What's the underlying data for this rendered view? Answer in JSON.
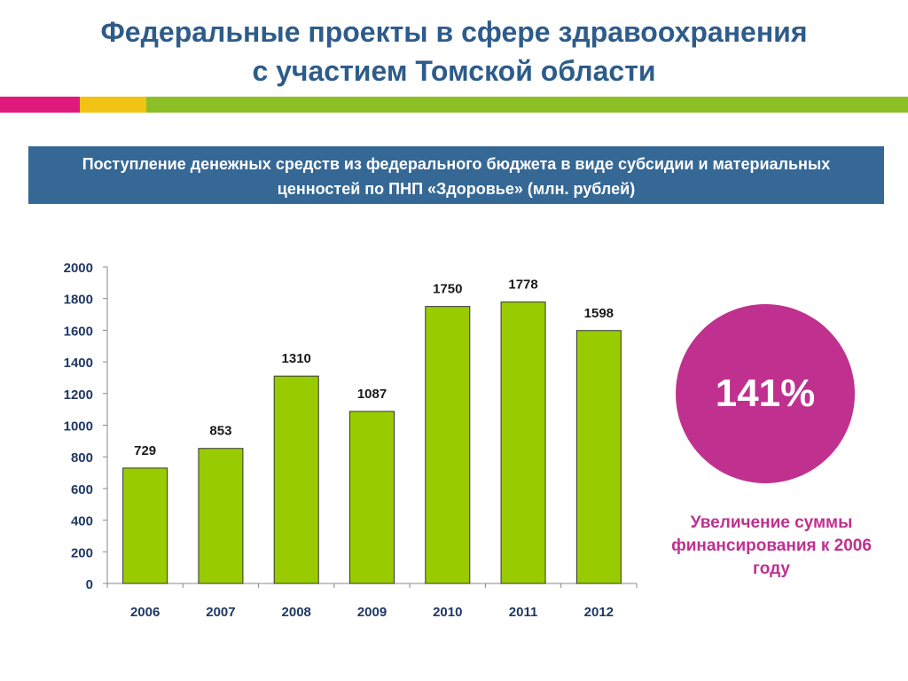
{
  "header": {
    "title_line1": "Федеральные проекты в сфере здравоохранения",
    "title_line2": "с участием Томской области"
  },
  "subtitle": {
    "line1": "Поступление денежных средств из федерального бюджета в виде субсидии и материальных",
    "line2": "ценностей по ПНП «Здоровье» (млн. рублей)"
  },
  "highlight": {
    "value": "141%",
    "caption_line1": "Увеличение суммы",
    "caption_line2": "финансирования к 2006",
    "caption_line3": "году"
  },
  "colors": {
    "title": "#2e5c8a",
    "subtitle_bg": "#366896",
    "bar": "#99cc00",
    "axis_text": "#1f3864",
    "circle": "#c0308f",
    "caption": "#c0308f",
    "stripe_magenta": "#e0197d",
    "stripe_yellow": "#f2c314",
    "stripe_green": "#8cbf26"
  },
  "chart_data": {
    "type": "bar",
    "categories": [
      "2006",
      "2007",
      "2008",
      "2009",
      "2010",
      "2011",
      "2012"
    ],
    "values": [
      729,
      853,
      1310,
      1087,
      1750,
      1778,
      1598
    ],
    "data_labels": [
      "729",
      "853",
      "1310",
      "1087",
      "1750",
      "1778",
      "1598"
    ],
    "y_ticks": [
      "0",
      "200",
      "400",
      "600",
      "800",
      "1000",
      "1200",
      "1400",
      "1600",
      "1800",
      "2000"
    ],
    "ylim": [
      0,
      2000
    ],
    "grid": false,
    "legend": "none"
  }
}
